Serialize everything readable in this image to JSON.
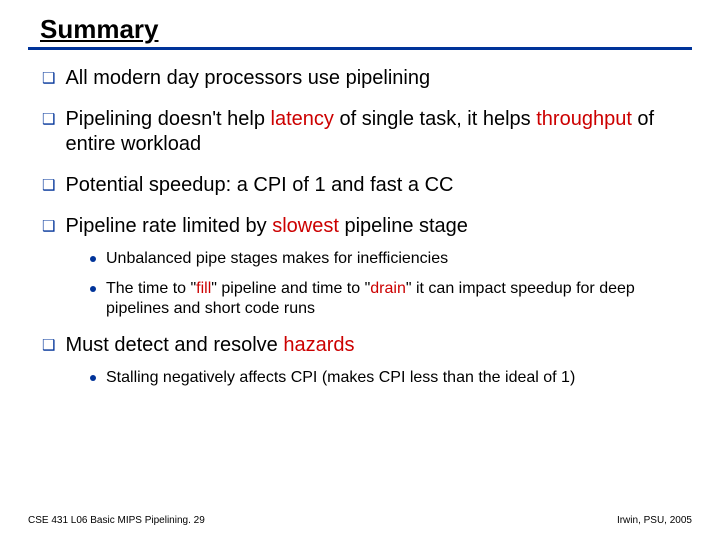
{
  "title": "Summary",
  "colors": {
    "accent": "#003399",
    "highlight": "#cc0000",
    "text": "#000000",
    "background": "#ffffff"
  },
  "typography": {
    "title_fontsize": 26,
    "lvl1_fontsize": 20,
    "lvl2_fontsize": 16,
    "footer_fontsize": 10,
    "font_family": "Arial"
  },
  "items": {
    "i0": {
      "text": "All modern day processors use pipelining"
    },
    "i1": {
      "p0": "Pipelining doesn't help ",
      "h0": "latency",
      "p1": " of single task, it helps ",
      "h1": "throughput",
      "p2": " of entire workload"
    },
    "i2": {
      "text": "Potential speedup:  a CPI of 1 and fast a CC"
    },
    "i3": {
      "p0": "Pipeline rate limited by ",
      "h0": "slowest",
      "p1": " pipeline stage",
      "sub": {
        "s0": {
          "text": "Unbalanced pipe stages makes for inefficiencies"
        },
        "s1": {
          "p0": "The time to \"",
          "h0": "fill",
          "p1": "\" pipeline and time to \"",
          "h1": "drain",
          "p2": "\" it can impact speedup for deep pipelines and short code runs"
        }
      }
    },
    "i4": {
      "p0": "Must detect and resolve ",
      "h0": "hazards",
      "sub": {
        "s0": {
          "text": "Stalling negatively affects CPI (makes CPI less than the ideal of 1)"
        }
      }
    }
  },
  "footer": {
    "left": "CSE 431  L06 Basic MIPS Pipelining. 29",
    "right": "Irwin, PSU, 2005"
  }
}
